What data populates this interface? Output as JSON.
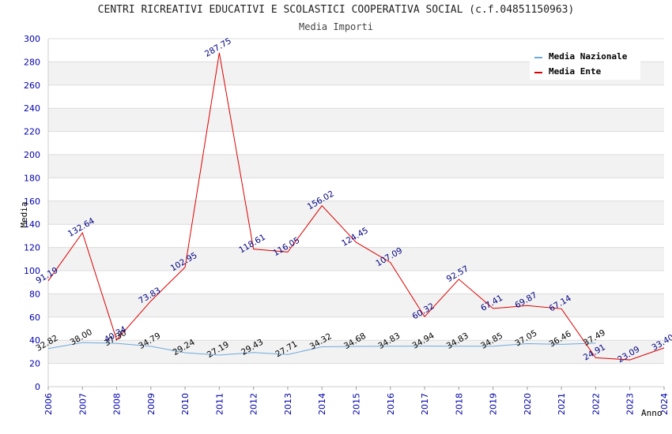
{
  "chart_data": {
    "type": "line",
    "title": "CENTRI RICREATIVI EDUCATIVI E SCOLASTICI COOPERATIVA SOCIAL (c.f.04851150963)",
    "subtitle": "Media Importi",
    "xlabel": "Anno",
    "ylabel": "Media",
    "ylim": [
      0,
      300
    ],
    "yticks": [
      0,
      20,
      40,
      60,
      80,
      100,
      120,
      140,
      160,
      180,
      200,
      220,
      240,
      260,
      280,
      300
    ],
    "x": [
      "2006",
      "2007",
      "2008",
      "2009",
      "2010",
      "2011",
      "2012",
      "2013",
      "2014",
      "2015",
      "2016",
      "2017",
      "2018",
      "2019",
      "2020",
      "2021",
      "2022",
      "2023",
      "2024"
    ],
    "series": [
      {
        "name": "Media Nazionale",
        "color": "#6fa8dc",
        "label_color": "#000000",
        "values": [
          32.82,
          38.0,
          37.3,
          34.79,
          29.24,
          27.19,
          29.43,
          27.71,
          34.32,
          34.68,
          34.83,
          34.94,
          34.83,
          34.85,
          37.05,
          36.46,
          37.49,
          null,
          null
        ],
        "labels": [
          "32.82",
          "38.00",
          "37.30",
          "34.79",
          "29.24",
          "27.19",
          "29.43",
          "27.71",
          "34.32",
          "34.68",
          "34.83",
          "34.94",
          "34.83",
          "34.85",
          "37.05",
          "36.46",
          "37.49",
          null,
          null
        ]
      },
      {
        "name": "Media Ente",
        "color": "#dd0000",
        "label_color": "#000080",
        "values": [
          91.19,
          132.64,
          40.34,
          73.83,
          102.95,
          287.75,
          118.61,
          116.05,
          156.02,
          124.45,
          107.09,
          60.32,
          92.57,
          67.41,
          69.87,
          67.14,
          24.91,
          23.09,
          33.4
        ],
        "labels": [
          "91.19",
          "132.64",
          "40.34",
          "73.83",
          "102.95",
          "287.75",
          "118.61",
          "116.05",
          "156.02",
          "124.45",
          "107.09",
          "60.32",
          "92.57",
          "67.41",
          "69.87",
          "67.14",
          "24.91",
          "23.09",
          "33.40"
        ]
      }
    ],
    "legend_position": "top-right"
  }
}
